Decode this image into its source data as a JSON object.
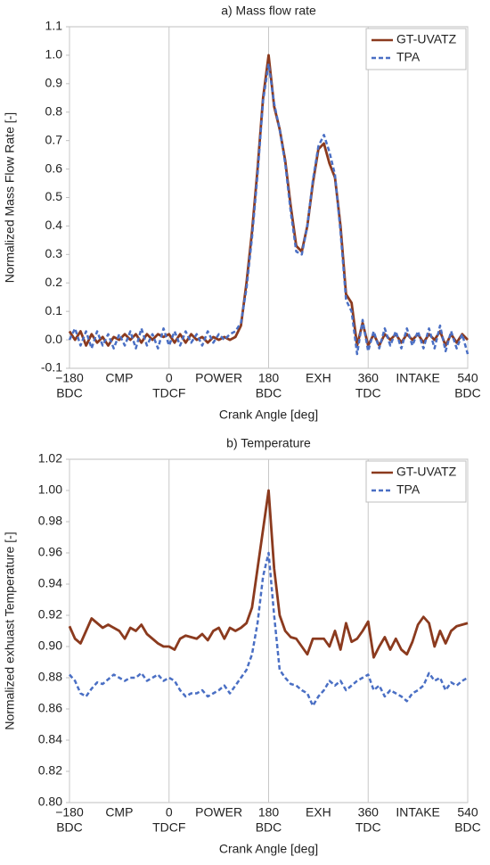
{
  "chart_data": [
    {
      "type": "line",
      "title": "a) Mass flow rate",
      "xlabel": "Crank Angle [deg]",
      "ylabel": "Normalized Mass Flow Rate [-]",
      "xlim": [
        -180,
        540
      ],
      "xticks": [
        {
          "value": -180,
          "label": "−180"
        },
        0,
        180,
        360,
        540
      ],
      "xtick_sublabels": [
        "BDC",
        "TDCF",
        "BDC",
        "TDC",
        "BDC"
      ],
      "stroke_labels": [
        {
          "value": -90,
          "label": "CMP"
        },
        {
          "value": 90,
          "label": "POWER"
        },
        {
          "value": 270,
          "label": "EXH"
        },
        {
          "value": 450,
          "label": "INTAKE"
        }
      ],
      "ylim": [
        -0.1,
        1.1
      ],
      "yticks": [
        -0.1,
        {
          "value": 0,
          "label": "0.0"
        },
        0.1,
        0.2,
        0.3,
        0.4,
        0.5,
        0.6,
        0.7,
        0.8,
        0.9,
        {
          "value": 1,
          "label": "1.0"
        },
        1.1
      ],
      "xgrid": true,
      "legend": "upper right",
      "x": [
        -180,
        -170,
        -160,
        -150,
        -140,
        -130,
        -120,
        -110,
        -100,
        -90,
        -80,
        -70,
        -60,
        -50,
        -40,
        -30,
        -20,
        -10,
        0,
        10,
        20,
        30,
        40,
        50,
        60,
        70,
        80,
        90,
        100,
        110,
        120,
        130,
        140,
        150,
        160,
        170,
        180,
        190,
        200,
        210,
        220,
        230,
        240,
        250,
        260,
        270,
        280,
        290,
        300,
        310,
        320,
        330,
        340,
        350,
        360,
        370,
        380,
        390,
        400,
        410,
        420,
        430,
        440,
        450,
        460,
        470,
        480,
        490,
        500,
        510,
        520,
        530,
        540
      ],
      "series": [
        {
          "name": "GT-UVATZ",
          "color": "#8b3a1e",
          "dash": false,
          "values": [
            0.03,
            0.0,
            0.03,
            -0.02,
            0.02,
            -0.01,
            0.01,
            -0.02,
            0.01,
            0.0,
            0.02,
            0.0,
            0.02,
            -0.01,
            0.02,
            0.0,
            0.02,
            0.01,
            0.02,
            -0.01,
            0.02,
            -0.01,
            0.02,
            0.0,
            0.01,
            -0.01,
            0.01,
            0.0,
            0.01,
            0.0,
            0.01,
            0.05,
            0.2,
            0.38,
            0.6,
            0.85,
            1.0,
            0.82,
            0.74,
            0.63,
            0.47,
            0.33,
            0.31,
            0.4,
            0.55,
            0.67,
            0.69,
            0.62,
            0.57,
            0.4,
            0.16,
            0.13,
            -0.02,
            0.06,
            -0.02,
            0.02,
            -0.02,
            0.02,
            0.0,
            0.02,
            -0.01,
            0.02,
            0.0,
            0.02,
            -0.01,
            0.02,
            0.0,
            0.03,
            -0.02,
            0.02,
            -0.01,
            0.02,
            0.0
          ]
        },
        {
          "name": "TPA",
          "color": "#4a6fc4",
          "dash": true,
          "values": [
            0.0,
            0.04,
            -0.02,
            0.03,
            -0.03,
            0.03,
            -0.02,
            0.02,
            -0.03,
            0.02,
            -0.02,
            0.03,
            -0.03,
            0.04,
            -0.02,
            0.02,
            -0.03,
            0.04,
            -0.02,
            0.03,
            -0.02,
            0.03,
            -0.01,
            0.02,
            -0.02,
            0.03,
            -0.01,
            0.02,
            0.0,
            0.02,
            0.03,
            0.06,
            0.18,
            0.36,
            0.58,
            0.84,
            0.97,
            0.83,
            0.74,
            0.62,
            0.45,
            0.31,
            0.3,
            0.4,
            0.56,
            0.68,
            0.72,
            0.66,
            0.58,
            0.38,
            0.14,
            0.1,
            -0.05,
            0.07,
            -0.04,
            0.03,
            -0.03,
            0.04,
            -0.02,
            0.03,
            -0.03,
            0.04,
            -0.02,
            0.03,
            -0.03,
            0.04,
            -0.03,
            0.05,
            -0.04,
            0.03,
            -0.03,
            0.02,
            -0.05
          ]
        }
      ]
    },
    {
      "type": "line",
      "title": "b) Temperature",
      "xlabel": "Crank Angle [deg]",
      "ylabel": "Normalized exhuast Temperature [-]",
      "xlim": [
        -180,
        540
      ],
      "xticks": [
        {
          "value": -180,
          "label": "−180"
        },
        0,
        180,
        360,
        540
      ],
      "xtick_sublabels": [
        "BDC",
        "TDCF",
        "BDC",
        "TDC",
        "BDC"
      ],
      "stroke_labels": [
        {
          "value": -90,
          "label": "CMP"
        },
        {
          "value": 90,
          "label": "POWER"
        },
        {
          "value": 270,
          "label": "EXH"
        },
        {
          "value": 450,
          "label": "INTAKE"
        }
      ],
      "ylim": [
        0.8,
        1.02
      ],
      "yticks": [
        {
          "value": 0.8,
          "label": "0.80"
        },
        0.82,
        0.84,
        0.86,
        0.88,
        {
          "value": 0.9,
          "label": "0.90"
        },
        0.92,
        0.94,
        0.96,
        0.98,
        {
          "value": 1,
          "label": "1.00"
        },
        1.02
      ],
      "xgrid": true,
      "legend": "upper right",
      "x": [
        -180,
        -170,
        -160,
        -150,
        -140,
        -130,
        -120,
        -110,
        -100,
        -90,
        -80,
        -70,
        -60,
        -50,
        -40,
        -30,
        -20,
        -10,
        0,
        10,
        20,
        30,
        40,
        50,
        60,
        70,
        80,
        90,
        100,
        110,
        120,
        130,
        140,
        150,
        160,
        170,
        180,
        190,
        200,
        210,
        220,
        230,
        240,
        250,
        260,
        270,
        280,
        290,
        300,
        310,
        320,
        330,
        340,
        350,
        360,
        370,
        380,
        390,
        400,
        410,
        420,
        430,
        440,
        450,
        460,
        470,
        480,
        490,
        500,
        510,
        520,
        530,
        540
      ],
      "series": [
        {
          "name": "GT-UVATZ",
          "color": "#8b3a1e",
          "dash": false,
          "values": [
            0.913,
            0.905,
            0.902,
            0.91,
            0.918,
            0.915,
            0.912,
            0.914,
            0.912,
            0.91,
            0.905,
            0.912,
            0.91,
            0.914,
            0.908,
            0.905,
            0.902,
            0.9,
            0.9,
            0.898,
            0.905,
            0.907,
            0.906,
            0.905,
            0.908,
            0.904,
            0.91,
            0.912,
            0.905,
            0.912,
            0.91,
            0.912,
            0.915,
            0.925,
            0.95,
            0.975,
            1.0,
            0.95,
            0.92,
            0.91,
            0.906,
            0.905,
            0.9,
            0.895,
            0.905,
            0.905,
            0.905,
            0.9,
            0.91,
            0.898,
            0.915,
            0.903,
            0.905,
            0.91,
            0.916,
            0.893,
            0.9,
            0.906,
            0.898,
            0.905,
            0.898,
            0.895,
            0.903,
            0.914,
            0.919,
            0.915,
            0.9,
            0.91,
            0.902,
            0.91,
            0.913,
            0.914,
            0.915
          ]
        },
        {
          "name": "TPA",
          "color": "#4a6fc4",
          "dash": true,
          "values": [
            0.882,
            0.878,
            0.87,
            0.868,
            0.873,
            0.877,
            0.876,
            0.879,
            0.882,
            0.88,
            0.878,
            0.88,
            0.88,
            0.883,
            0.878,
            0.88,
            0.882,
            0.878,
            0.88,
            0.878,
            0.872,
            0.868,
            0.87,
            0.87,
            0.872,
            0.868,
            0.87,
            0.872,
            0.875,
            0.87,
            0.875,
            0.88,
            0.885,
            0.895,
            0.915,
            0.945,
            0.96,
            0.92,
            0.885,
            0.88,
            0.876,
            0.875,
            0.872,
            0.87,
            0.862,
            0.868,
            0.872,
            0.878,
            0.875,
            0.878,
            0.872,
            0.875,
            0.878,
            0.88,
            0.882,
            0.872,
            0.875,
            0.868,
            0.872,
            0.87,
            0.868,
            0.865,
            0.87,
            0.872,
            0.875,
            0.883,
            0.878,
            0.88,
            0.872,
            0.877,
            0.875,
            0.878,
            0.88
          ]
        }
      ]
    }
  ]
}
